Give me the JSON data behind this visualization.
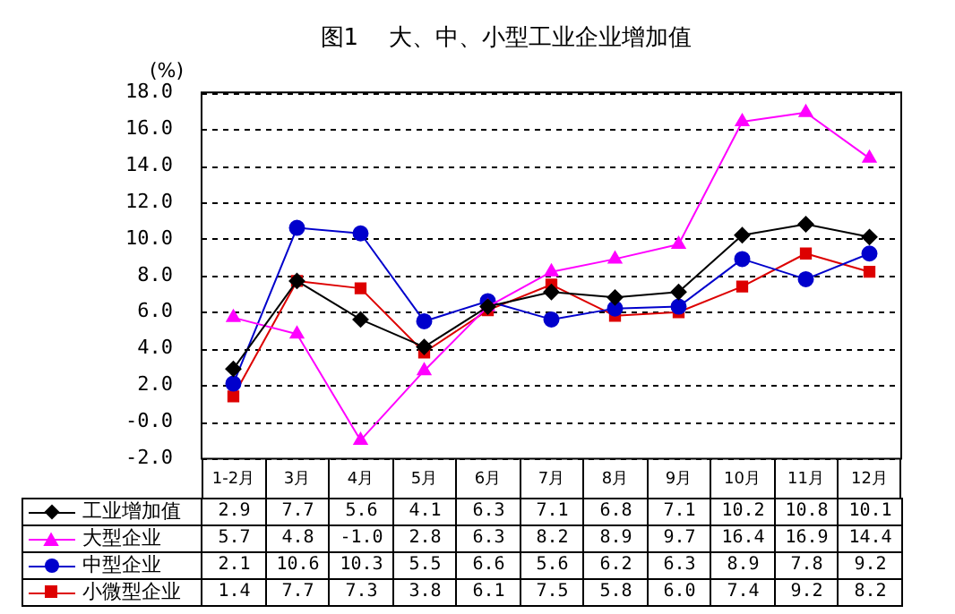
{
  "chart_data": {
    "type": "line",
    "title": "图1　 大、中、小型工业企业增加值",
    "ylabel": "(%)",
    "categories": [
      "1-2月",
      "3月",
      "4月",
      "5月",
      "6月",
      "7月",
      "8月",
      "9月",
      "10月",
      "11月",
      "12月"
    ],
    "series": [
      {
        "name": "工业增加值",
        "color": "#000000",
        "marker": "diamond",
        "values": [
          2.9,
          7.7,
          5.6,
          4.1,
          6.3,
          7.1,
          6.8,
          7.1,
          10.2,
          10.8,
          10.1
        ],
        "value_labels": [
          "2.9",
          "7.7",
          "5.6",
          "4.1",
          "6.3",
          "7.1",
          "6.8",
          "7.1",
          "10.2",
          "10.8",
          "10.1"
        ]
      },
      {
        "name": "大型企业",
        "color": "#ff00ff",
        "marker": "triangle",
        "values": [
          5.7,
          4.8,
          -1.0,
          2.8,
          6.3,
          8.2,
          8.9,
          9.7,
          16.4,
          16.9,
          14.4
        ],
        "value_labels": [
          "5.7",
          "4.8",
          "-1.0",
          "2.8",
          "6.3",
          "8.2",
          "8.9",
          "9.7",
          "16.4",
          "16.9",
          "14.4"
        ]
      },
      {
        "name": "中型企业",
        "color": "#0000cc",
        "marker": "circle",
        "values": [
          2.1,
          10.6,
          10.3,
          5.5,
          6.6,
          5.6,
          6.2,
          6.3,
          8.9,
          7.8,
          9.2
        ],
        "value_labels": [
          "2.1",
          "10.6",
          "10.3",
          "5.5",
          "6.6",
          "5.6",
          "6.2",
          "6.3",
          "8.9",
          "7.8",
          "9.2"
        ]
      },
      {
        "name": "小微型企业",
        "color": "#dd0000",
        "marker": "square",
        "values": [
          1.4,
          7.7,
          7.3,
          3.8,
          6.1,
          7.5,
          5.8,
          6.0,
          7.4,
          9.2,
          8.2
        ],
        "value_labels": [
          "1.4",
          "7.7",
          "7.3",
          "3.8",
          "6.1",
          "7.5",
          "5.8",
          "6.0",
          "7.4",
          "9.2",
          "8.2"
        ]
      }
    ],
    "ylim": [
      -2,
      18
    ],
    "yticks": [
      {
        "value": -2,
        "label": "-2.0"
      },
      {
        "value": 0,
        "label": "-0.0"
      },
      {
        "value": 2,
        "label": "2.0"
      },
      {
        "value": 4,
        "label": "4.0"
      },
      {
        "value": 6,
        "label": "6.0"
      },
      {
        "value": 8,
        "label": "8.0"
      },
      {
        "value": 10,
        "label": "10.0"
      },
      {
        "value": 12,
        "label": "12.0"
      },
      {
        "value": 14,
        "label": "14.0"
      },
      {
        "value": 16,
        "label": "16.0"
      },
      {
        "value": 18,
        "label": "18.0"
      }
    ],
    "grid": "y",
    "line_style": "solid",
    "legend": "bottom"
  }
}
